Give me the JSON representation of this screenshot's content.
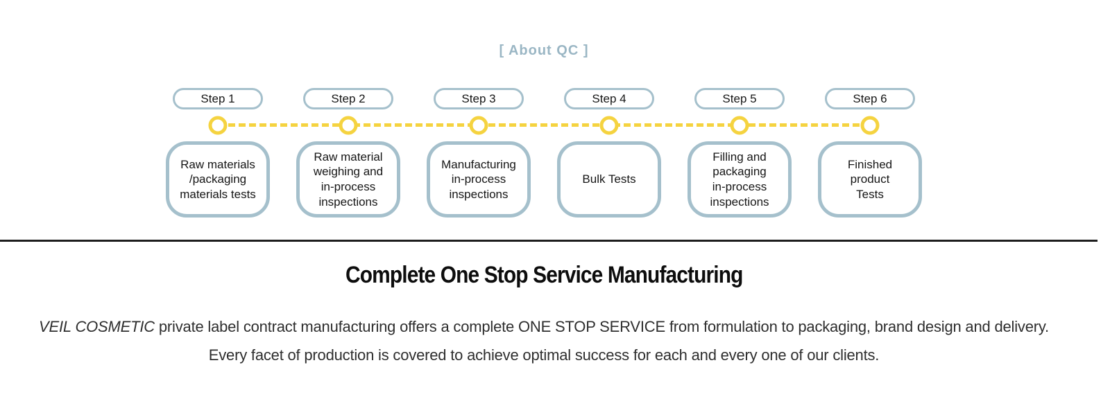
{
  "colors": {
    "steel-blue": "#A5C0CC",
    "title-blue": "#9AB6C4",
    "accent-yellow": "#F5D340",
    "divider-dark": "#1D1D1D",
    "text-dark": "#111111"
  },
  "qc_section": {
    "title": "[ About QC ]",
    "steps": [
      {
        "label": "Step 1",
        "description": "Raw materials\n/packaging\nmaterials tests"
      },
      {
        "label": "Step 2",
        "description": "Raw material\nweighing and\nin-process\ninspections"
      },
      {
        "label": "Step 3",
        "description": "Manufacturing\nin-process\ninspections"
      },
      {
        "label": "Step 4",
        "description": "Bulk Tests"
      },
      {
        "label": "Step 5",
        "description": "Filling and\npackaging\nin-process\ninspections"
      },
      {
        "label": "Step 6",
        "description": "Finished\nproduct\nTests"
      }
    ]
  },
  "manufacturing_section": {
    "heading": "Complete One Stop Service Manufacturing",
    "intro_brand": "VEIL COSMETIC",
    "intro_rest": " private label contract manufacturing offers a complete ONE STOP SERVICE from formulation to packaging, brand design and delivery.",
    "intro_line2": "Every facet of production is covered to achieve optimal success for each and every one of our clients."
  }
}
